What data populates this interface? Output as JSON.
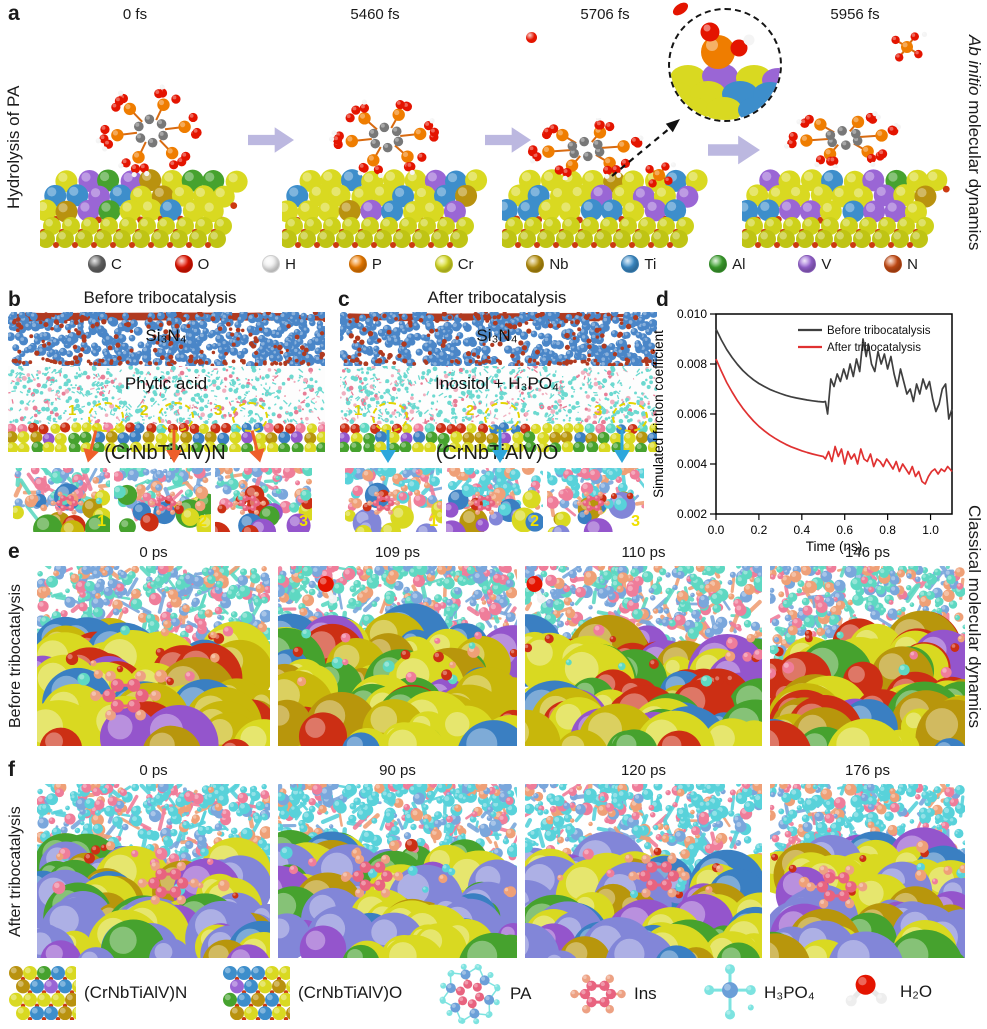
{
  "figure": {
    "panel_a": {
      "label": "a",
      "side_label": "Hydrolysis of PA",
      "right_label_italic": "Ab initio",
      "right_label_rest": " molecular dynamics",
      "frames": [
        {
          "time": "0 fs"
        },
        {
          "time": "5460 fs"
        },
        {
          "time": "5706 fs"
        },
        {
          "time": "5956 fs"
        }
      ],
      "atoms": [
        {
          "symbol": "C",
          "color": "#686868"
        },
        {
          "symbol": "O",
          "color": "#e41400"
        },
        {
          "symbol": "H",
          "color": "#f2f2f2"
        },
        {
          "symbol": "P",
          "color": "#ef7d00"
        },
        {
          "symbol": "Cr",
          "color": "#d8dc26"
        },
        {
          "symbol": "Nb",
          "color": "#b9920f"
        },
        {
          "symbol": "Ti",
          "color": "#3d8ecb"
        },
        {
          "symbol": "Al",
          "color": "#3da32f"
        },
        {
          "symbol": "V",
          "color": "#9a66d5"
        },
        {
          "symbol": "N",
          "color": "#c94d15"
        }
      ]
    },
    "panel_b": {
      "label": "b",
      "title": "Before tribocatalysis",
      "top_layer": "Si₃N₄",
      "mid_layer": "Phytic acid",
      "bottom_label": "(CrNbTiAlV)N",
      "spots": [
        "1",
        "2",
        "3"
      ],
      "inset_nums": [
        "1",
        "2",
        "3"
      ]
    },
    "panel_c": {
      "label": "c",
      "title": "After tribocatalysis",
      "top_layer": "Si₃N₄",
      "mid_layer": "Inositol + H₃PO₄",
      "bottom_label": "(CrNbTiAlV)O",
      "spots": [
        "1",
        "2",
        "3"
      ],
      "inset_nums": [
        "1",
        "2",
        "3"
      ]
    },
    "panel_d": {
      "label": "d"
    },
    "panel_e": {
      "label": "e",
      "side_label": "Before tribocatalysis",
      "frames": [
        {
          "time": "0 ps"
        },
        {
          "time": "109 ps"
        },
        {
          "time": "110 ps"
        },
        {
          "time": "146 ps"
        }
      ]
    },
    "panel_f": {
      "label": "f",
      "side_label": "After tribocatalysis",
      "frames": [
        {
          "time": "0 ps"
        },
        {
          "time": "90 ps"
        },
        {
          "time": "120 ps"
        },
        {
          "time": "176 ps"
        }
      ]
    },
    "right_label_classical": "Classical molecular dynamics",
    "bottom_legend": [
      {
        "label": "(CrNbTiAlV)N"
      },
      {
        "label": "(CrNbTiAlV)O"
      },
      {
        "label": "PA"
      },
      {
        "label": "Ins"
      },
      {
        "label": "H₃PO₄"
      },
      {
        "label": "H₂O"
      }
    ]
  },
  "chart_data": {
    "type": "line",
    "xlabel": "Time (ns)",
    "ylabel": "Simulated friction coefficient",
    "xlim": [
      0.0,
      1.1
    ],
    "ylim": [
      0.002,
      0.01
    ],
    "xticks": [
      0.0,
      0.2,
      0.4,
      0.6,
      0.8,
      1.0
    ],
    "yticks": [
      0.002,
      0.004,
      0.006,
      0.008,
      0.01
    ],
    "grid": false,
    "legend_position": "top-right",
    "series": [
      {
        "name": "Before tribocatalysis",
        "color": "#3f3f3f",
        "points": [
          [
            0,
            0.0094
          ],
          [
            0.025,
            0.00896
          ],
          [
            0.05,
            0.00858
          ],
          [
            0.075,
            0.00826
          ],
          [
            0.1,
            0.00798
          ],
          [
            0.125,
            0.00774
          ],
          [
            0.15,
            0.00754
          ],
          [
            0.175,
            0.00737
          ],
          [
            0.2,
            0.00722
          ],
          [
            0.225,
            0.0071
          ],
          [
            0.25,
            0.00699
          ],
          [
            0.275,
            0.0069
          ],
          [
            0.3,
            0.00682
          ],
          [
            0.325,
            0.00675
          ],
          [
            0.35,
            0.00669
          ],
          [
            0.375,
            0.00664
          ],
          [
            0.4,
            0.0066
          ],
          [
            0.425,
            0.00656
          ],
          [
            0.45,
            0.00653
          ],
          [
            0.475,
            0.0065
          ],
          [
            0.5,
            0.00648
          ],
          [
            0.51,
            0.0065
          ],
          [
            0.52,
            0.006
          ],
          [
            0.535,
            0.0074
          ],
          [
            0.55,
            0.0071
          ],
          [
            0.565,
            0.0076
          ],
          [
            0.58,
            0.0073
          ],
          [
            0.595,
            0.0078
          ],
          [
            0.61,
            0.0074
          ],
          [
            0.625,
            0.008
          ],
          [
            0.64,
            0.0075
          ],
          [
            0.655,
            0.0082
          ],
          [
            0.67,
            0.0077
          ],
          [
            0.685,
            0.009
          ],
          [
            0.7,
            0.0083
          ],
          [
            0.71,
            0.0088
          ],
          [
            0.725,
            0.008
          ],
          [
            0.74,
            0.0077
          ],
          [
            0.755,
            0.0085
          ],
          [
            0.77,
            0.008
          ],
          [
            0.785,
            0.0084
          ],
          [
            0.8,
            0.0078
          ],
          [
            0.815,
            0.0083
          ],
          [
            0.83,
            0.0076
          ],
          [
            0.845,
            0.0071
          ],
          [
            0.86,
            0.0078
          ],
          [
            0.875,
            0.0073
          ],
          [
            0.89,
            0.0068
          ],
          [
            0.905,
            0.007
          ],
          [
            0.92,
            0.0065
          ],
          [
            0.935,
            0.0072
          ],
          [
            0.95,
            0.0068
          ],
          [
            0.965,
            0.0074
          ],
          [
            0.98,
            0.007
          ],
          [
            0.995,
            0.0073
          ],
          [
            1.01,
            0.0066
          ],
          [
            1.025,
            0.0061
          ],
          [
            1.04,
            0.0064
          ],
          [
            1.055,
            0.007
          ],
          [
            1.07,
            0.0072
          ],
          [
            1.085,
            0.0058
          ],
          [
            1.1,
            0.0062
          ]
        ]
      },
      {
        "name": "After tribocatalysis",
        "color": "#e03131",
        "points": [
          [
            0,
            0.0082
          ],
          [
            0.025,
            0.00771
          ],
          [
            0.05,
            0.00726
          ],
          [
            0.075,
            0.00688
          ],
          [
            0.1,
            0.00653
          ],
          [
            0.125,
            0.00623
          ],
          [
            0.15,
            0.00596
          ],
          [
            0.175,
            0.00572
          ],
          [
            0.2,
            0.00551
          ],
          [
            0.225,
            0.00533
          ],
          [
            0.25,
            0.00517
          ],
          [
            0.275,
            0.00503
          ],
          [
            0.3,
            0.0049
          ],
          [
            0.325,
            0.00479
          ],
          [
            0.35,
            0.00469
          ],
          [
            0.375,
            0.00461
          ],
          [
            0.4,
            0.00453
          ],
          [
            0.425,
            0.00446
          ],
          [
            0.45,
            0.0044
          ],
          [
            0.475,
            0.00435
          ],
          [
            0.5,
            0.0043
          ],
          [
            0.51,
            0.0042
          ],
          [
            0.525,
            0.0045
          ],
          [
            0.54,
            0.0041
          ],
          [
            0.555,
            0.0047
          ],
          [
            0.57,
            0.0043
          ],
          [
            0.585,
            0.0046
          ],
          [
            0.6,
            0.004
          ],
          [
            0.615,
            0.0045
          ],
          [
            0.63,
            0.0042
          ],
          [
            0.645,
            0.0044
          ],
          [
            0.66,
            0.004
          ],
          [
            0.675,
            0.0046
          ],
          [
            0.69,
            0.0042
          ],
          [
            0.705,
            0.0041
          ],
          [
            0.72,
            0.0044
          ],
          [
            0.735,
            0.0039
          ],
          [
            0.75,
            0.0042
          ],
          [
            0.765,
            0.0041
          ],
          [
            0.78,
            0.0039
          ],
          [
            0.795,
            0.0042
          ],
          [
            0.81,
            0.004
          ],
          [
            0.825,
            0.0038
          ],
          [
            0.84,
            0.0041
          ],
          [
            0.855,
            0.0037
          ],
          [
            0.87,
            0.004
          ],
          [
            0.885,
            0.0038
          ],
          [
            0.9,
            0.0036
          ],
          [
            0.915,
            0.0039
          ],
          [
            0.93,
            0.0035
          ],
          [
            0.945,
            0.0037
          ],
          [
            0.96,
            0.0033
          ],
          [
            0.975,
            0.0032
          ],
          [
            0.99,
            0.0035
          ],
          [
            1.005,
            0.0037
          ],
          [
            1.02,
            0.0038
          ],
          [
            1.035,
            0.0036
          ],
          [
            1.05,
            0.0038
          ],
          [
            1.065,
            0.0037
          ],
          [
            1.08,
            0.0039
          ],
          [
            1.1,
            0.0037
          ]
        ]
      }
    ]
  }
}
